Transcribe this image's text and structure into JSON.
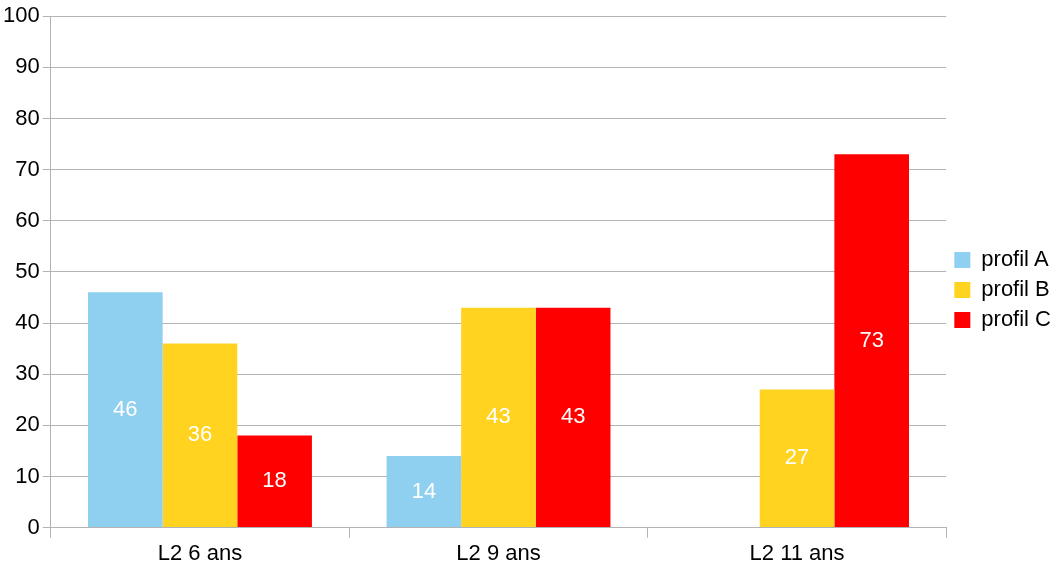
{
  "chart_data": {
    "type": "bar",
    "categories": [
      "L2 6 ans",
      "L2 9 ans",
      "L2 11 ans"
    ],
    "series": [
      {
        "name": "profil A",
        "color": "#8fcfef",
        "values": [
          46,
          14,
          null
        ]
      },
      {
        "name": "profil B",
        "color": "#ffd320",
        "values": [
          36,
          43,
          27
        ]
      },
      {
        "name": "profil C",
        "color": "#ff0000",
        "values": [
          18,
          43,
          73
        ]
      }
    ],
    "ylim": [
      0,
      100
    ],
    "yticks": [
      0,
      10,
      20,
      30,
      40,
      50,
      60,
      70,
      80,
      90,
      100
    ],
    "grid": "y",
    "legend": "right",
    "data_labels": true
  }
}
